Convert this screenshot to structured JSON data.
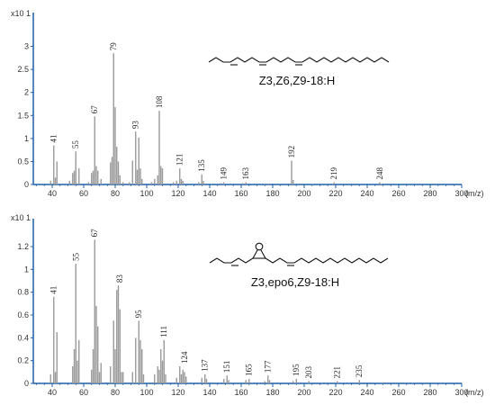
{
  "chart_data": [
    {
      "type": "bar",
      "compound": "Z3,Z6,Z9-18:H",
      "magnitude_label": "x10 1",
      "x_unit": "(m/z)",
      "xlim": [
        28,
        300
      ],
      "ylim": [
        0,
        3.5
      ],
      "x_ticks": [
        40,
        60,
        80,
        100,
        120,
        140,
        160,
        180,
        200,
        220,
        240,
        260,
        280,
        300
      ],
      "y_ticks": [
        0,
        0.5,
        1,
        1.5,
        2,
        2.5,
        3
      ],
      "colors": {
        "bars": "#9a9a9a",
        "axis": "#1f5fa8"
      },
      "peaks": [
        {
          "mz": 39,
          "v": 0.08
        },
        {
          "mz": 41,
          "v": 0.85
        },
        {
          "mz": 42,
          "v": 0.15
        },
        {
          "mz": 43,
          "v": 0.5
        },
        {
          "mz": 51,
          "v": 0.08
        },
        {
          "mz": 53,
          "v": 0.25
        },
        {
          "mz": 54,
          "v": 0.3
        },
        {
          "mz": 55,
          "v": 0.72
        },
        {
          "mz": 57,
          "v": 0.35
        },
        {
          "mz": 63,
          "v": 0.05
        },
        {
          "mz": 65,
          "v": 0.25
        },
        {
          "mz": 66,
          "v": 0.3
        },
        {
          "mz": 67,
          "v": 1.48
        },
        {
          "mz": 68,
          "v": 0.4
        },
        {
          "mz": 69,
          "v": 0.3
        },
        {
          "mz": 71,
          "v": 0.12
        },
        {
          "mz": 77,
          "v": 0.48
        },
        {
          "mz": 78,
          "v": 0.6
        },
        {
          "mz": 79,
          "v": 2.85
        },
        {
          "mz": 80,
          "v": 1.68
        },
        {
          "mz": 81,
          "v": 0.82
        },
        {
          "mz": 82,
          "v": 0.5
        },
        {
          "mz": 83,
          "v": 0.2
        },
        {
          "mz": 85,
          "v": 0.05
        },
        {
          "mz": 89,
          "v": 0.05
        },
        {
          "mz": 91,
          "v": 0.52
        },
        {
          "mz": 93,
          "v": 1.15
        },
        {
          "mz": 94,
          "v": 0.32
        },
        {
          "mz": 95,
          "v": 1.02
        },
        {
          "mz": 96,
          "v": 0.35
        },
        {
          "mz": 97,
          "v": 0.12
        },
        {
          "mz": 103,
          "v": 0.05
        },
        {
          "mz": 105,
          "v": 0.12
        },
        {
          "mz": 107,
          "v": 0.2
        },
        {
          "mz": 108,
          "v": 1.6
        },
        {
          "mz": 109,
          "v": 0.4
        },
        {
          "mz": 110,
          "v": 0.35
        },
        {
          "mz": 117,
          "v": 0.05
        },
        {
          "mz": 119,
          "v": 0.08
        },
        {
          "mz": 121,
          "v": 0.35
        },
        {
          "mz": 122,
          "v": 0.12
        },
        {
          "mz": 123,
          "v": 0.08
        },
        {
          "mz": 133,
          "v": 0.05
        },
        {
          "mz": 135,
          "v": 0.22
        },
        {
          "mz": 136,
          "v": 0.08
        },
        {
          "mz": 147,
          "v": 0.03
        },
        {
          "mz": 149,
          "v": 0.05
        },
        {
          "mz": 161,
          "v": 0.03
        },
        {
          "mz": 163,
          "v": 0.05
        },
        {
          "mz": 175,
          "v": 0.02
        },
        {
          "mz": 177,
          "v": 0.02
        },
        {
          "mz": 192,
          "v": 0.52
        },
        {
          "mz": 193,
          "v": 0.1
        },
        {
          "mz": 205,
          "v": 0.01
        },
        {
          "mz": 219,
          "v": 0.05
        },
        {
          "mz": 248,
          "v": 0.05
        },
        {
          "mz": 249,
          "v": 0.01
        }
      ],
      "labels": [
        {
          "mz": 41,
          "text": "41",
          "v": 0.85
        },
        {
          "mz": 55,
          "text": "55",
          "v": 0.72
        },
        {
          "mz": 67,
          "text": "67",
          "v": 1.48
        },
        {
          "mz": 79,
          "text": "79",
          "v": 2.85
        },
        {
          "mz": 93,
          "text": "93",
          "v": 1.15
        },
        {
          "mz": 108,
          "text": "108",
          "v": 1.6
        },
        {
          "mz": 121,
          "text": "121",
          "v": 0.35
        },
        {
          "mz": 135,
          "text": "135",
          "v": 0.22
        },
        {
          "mz": 149,
          "text": "149",
          "v": 0.05
        },
        {
          "mz": 163,
          "text": "163",
          "v": 0.05
        },
        {
          "mz": 192,
          "text": "192",
          "v": 0.52
        },
        {
          "mz": 219,
          "text": "219",
          "v": 0.05
        },
        {
          "mz": 248,
          "text": "248",
          "v": 0.05
        }
      ]
    },
    {
      "type": "bar",
      "compound": "Z3,epo6,Z9-18:H",
      "magnitude_label": "x10 1",
      "x_unit": "(m/z)",
      "xlim": [
        28,
        300
      ],
      "ylim": [
        0,
        1.35
      ],
      "x_ticks": [
        40,
        60,
        80,
        100,
        120,
        140,
        160,
        180,
        200,
        220,
        240,
        260,
        280,
        300
      ],
      "y_ticks": [
        0,
        0.2,
        0.4,
        0.6,
        0.8,
        1,
        1.2
      ],
      "colors": {
        "bars": "#9a9a9a",
        "axis": "#1f5fa8"
      },
      "peaks": [
        {
          "mz": 39,
          "v": 0.08
        },
        {
          "mz": 41,
          "v": 0.76
        },
        {
          "mz": 42,
          "v": 0.1
        },
        {
          "mz": 43,
          "v": 0.45
        },
        {
          "mz": 53,
          "v": 0.15
        },
        {
          "mz": 54,
          "v": 0.3
        },
        {
          "mz": 55,
          "v": 1.05
        },
        {
          "mz": 56,
          "v": 0.2
        },
        {
          "mz": 57,
          "v": 0.38
        },
        {
          "mz": 65,
          "v": 0.12
        },
        {
          "mz": 66,
          "v": 0.3
        },
        {
          "mz": 67,
          "v": 1.26
        },
        {
          "mz": 68,
          "v": 0.68
        },
        {
          "mz": 69,
          "v": 0.5
        },
        {
          "mz": 70,
          "v": 0.1
        },
        {
          "mz": 71,
          "v": 0.18
        },
        {
          "mz": 77,
          "v": 0.15
        },
        {
          "mz": 79,
          "v": 0.55
        },
        {
          "mz": 80,
          "v": 0.3
        },
        {
          "mz": 81,
          "v": 0.82
        },
        {
          "mz": 82,
          "v": 0.86
        },
        {
          "mz": 83,
          "v": 0.65
        },
        {
          "mz": 84,
          "v": 0.1
        },
        {
          "mz": 85,
          "v": 0.1
        },
        {
          "mz": 91,
          "v": 0.1
        },
        {
          "mz": 93,
          "v": 0.4
        },
        {
          "mz": 95,
          "v": 0.55
        },
        {
          "mz": 96,
          "v": 0.38
        },
        {
          "mz": 97,
          "v": 0.3
        },
        {
          "mz": 98,
          "v": 0.08
        },
        {
          "mz": 105,
          "v": 0.08
        },
        {
          "mz": 107,
          "v": 0.15
        },
        {
          "mz": 108,
          "v": 0.12
        },
        {
          "mz": 109,
          "v": 0.3
        },
        {
          "mz": 110,
          "v": 0.2
        },
        {
          "mz": 111,
          "v": 0.38
        },
        {
          "mz": 112,
          "v": 0.08
        },
        {
          "mz": 119,
          "v": 0.05
        },
        {
          "mz": 121,
          "v": 0.15
        },
        {
          "mz": 122,
          "v": 0.08
        },
        {
          "mz": 123,
          "v": 0.12
        },
        {
          "mz": 124,
          "v": 0.1
        },
        {
          "mz": 125,
          "v": 0.06
        },
        {
          "mz": 135,
          "v": 0.05
        },
        {
          "mz": 137,
          "v": 0.08
        },
        {
          "mz": 138,
          "v": 0.04
        },
        {
          "mz": 149,
          "v": 0.04
        },
        {
          "mz": 151,
          "v": 0.07
        },
        {
          "mz": 152,
          "v": 0.03
        },
        {
          "mz": 163,
          "v": 0.03
        },
        {
          "mz": 165,
          "v": 0.04
        },
        {
          "mz": 175,
          "v": 0.02
        },
        {
          "mz": 177,
          "v": 0.07
        },
        {
          "mz": 178,
          "v": 0.03
        },
        {
          "mz": 193,
          "v": 0.02
        },
        {
          "mz": 195,
          "v": 0.04
        },
        {
          "mz": 203,
          "v": 0.02
        },
        {
          "mz": 221,
          "v": 0.02
        },
        {
          "mz": 235,
          "v": 0.03
        },
        {
          "mz": 250,
          "v": 0.01
        }
      ],
      "labels": [
        {
          "mz": 41,
          "text": "41",
          "v": 0.76
        },
        {
          "mz": 55,
          "text": "55",
          "v": 1.05
        },
        {
          "mz": 67,
          "text": "67",
          "v": 1.26
        },
        {
          "mz": 83,
          "text": "83",
          "v": 0.86
        },
        {
          "mz": 95,
          "text": "95",
          "v": 0.55
        },
        {
          "mz": 111,
          "text": "111",
          "v": 0.38
        },
        {
          "mz": 124,
          "text": "124",
          "v": 0.15
        },
        {
          "mz": 137,
          "text": "137",
          "v": 0.08
        },
        {
          "mz": 151,
          "text": "151",
          "v": 0.07
        },
        {
          "mz": 165,
          "text": "165",
          "v": 0.04
        },
        {
          "mz": 177,
          "text": "177",
          "v": 0.07
        },
        {
          "mz": 195,
          "text": "195",
          "v": 0.04
        },
        {
          "mz": 203,
          "text": "203",
          "v": 0.02
        },
        {
          "mz": 221,
          "text": "221",
          "v": 0.02
        },
        {
          "mz": 235,
          "text": "235",
          "v": 0.03
        }
      ]
    }
  ]
}
